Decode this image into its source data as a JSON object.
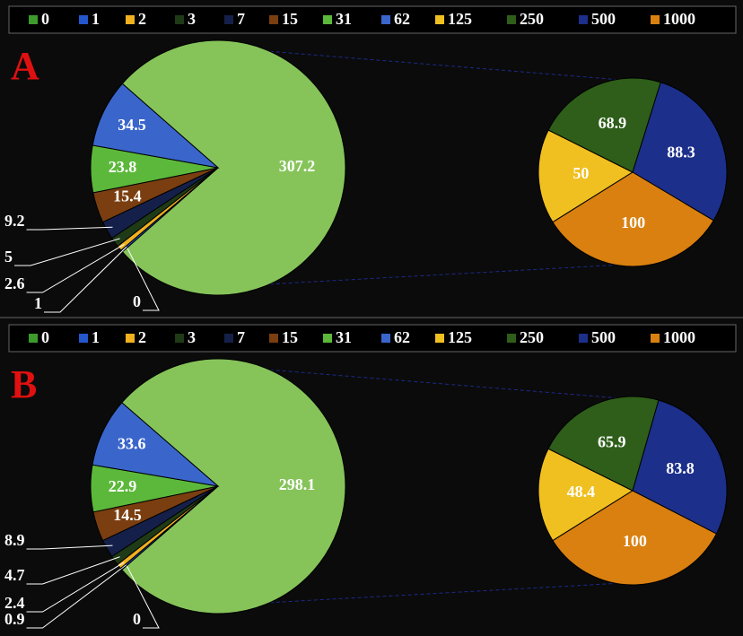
{
  "chart_data": [
    {
      "type": "pie-of-pie",
      "label": "A",
      "categories": [
        "0",
        "1",
        "2",
        "3",
        "7",
        "15",
        "31",
        "62",
        "125",
        "250",
        "500",
        "1000"
      ],
      "colors": [
        "#3d9b2c",
        "#2457cc",
        "#f0b020",
        "#1e3a16",
        "#15204a",
        "#7a3e10",
        "#5cb83a",
        "#3a66cc",
        "#f0c020",
        "#2e5e1a",
        "#1c2f8a",
        "#d98010"
      ],
      "values": [
        0,
        1,
        2.6,
        5,
        9.2,
        15.4,
        23.8,
        34.5,
        50,
        68.9,
        88.3,
        100
      ],
      "other_value": 307.2,
      "other_color": "#86c45a",
      "second_pie_count": 4
    },
    {
      "type": "pie-of-pie",
      "label": "B",
      "categories": [
        "0",
        "1",
        "2",
        "3",
        "7",
        "15",
        "31",
        "62",
        "125",
        "250",
        "500",
        "1000"
      ],
      "colors": [
        "#3d9b2c",
        "#2457cc",
        "#f0b020",
        "#1e3a16",
        "#15204a",
        "#7a3e10",
        "#5cb83a",
        "#3a66cc",
        "#f0c020",
        "#2e5e1a",
        "#1c2f8a",
        "#d98010"
      ],
      "values": [
        0,
        0.9,
        2.4,
        4.7,
        8.9,
        14.5,
        22.9,
        33.6,
        48.4,
        65.9,
        83.8,
        100
      ],
      "other_value": 298.1,
      "other_color": "#86c45a",
      "second_pie_count": 4
    }
  ]
}
